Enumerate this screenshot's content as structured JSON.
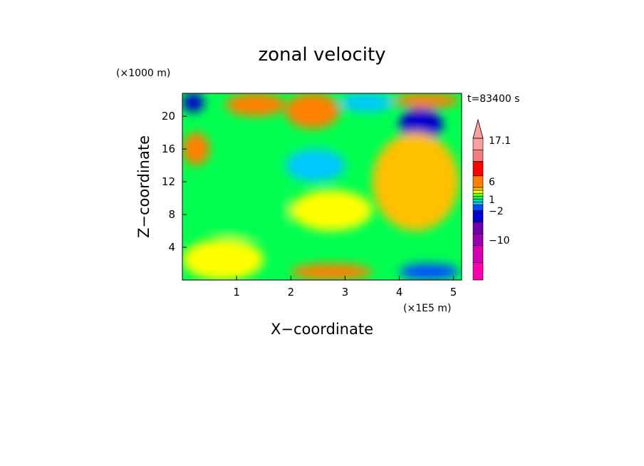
{
  "chart_data": {
    "type": "heatmap",
    "title": "zonal velocity",
    "xlabel": "X−coordinate",
    "ylabel": "Z−coordinate",
    "x_unit": "(×1E5 m)",
    "y_unit": "(×1000 m)",
    "time_label": "t=83400 s",
    "xlim": [
      0,
      5.15
    ],
    "ylim": [
      0,
      22.8
    ],
    "x_ticks": [
      1,
      2,
      3,
      4,
      5
    ],
    "y_ticks": [
      4,
      8,
      12,
      16,
      20
    ],
    "colorbar": {
      "labels": [
        {
          "value": 17.1,
          "text": "17.1"
        },
        {
          "value": 6,
          "text": "6"
        },
        {
          "value": 1,
          "text": "1"
        },
        {
          "value": -2,
          "text": "−2"
        },
        {
          "value": -10,
          "text": "−10"
        }
      ],
      "levels_colors": [
        "#ff00b0",
        "#d400b4",
        "#9a00b0",
        "#6f00b0",
        "#0000cc",
        "#0050ff",
        "#00c8ff",
        "#00e0a0",
        "#00ff50",
        "#80ff00",
        "#ffff00",
        "#ffc000",
        "#ff8000",
        "#ff0000",
        "#f08080",
        "#f8a0a0"
      ],
      "extend_max": true
    },
    "grid": false,
    "note_regions": [
      {
        "x": [
          0.0,
          0.4
        ],
        "z": [
          20.5,
          22.8
        ],
        "value": -8
      },
      {
        "x": [
          0.8,
          1.9
        ],
        "z": [
          20.0,
          22.8
        ],
        "value": 6
      },
      {
        "x": [
          1.9,
          2.9
        ],
        "z": [
          18.5,
          22.8
        ],
        "value": 10
      },
      {
        "x": [
          2.9,
          3.9
        ],
        "z": [
          20.5,
          22.8
        ],
        "value": -1
      },
      {
        "x": [
          4.0,
          4.8
        ],
        "z": [
          17.0,
          21.0
        ],
        "value": -8
      },
      {
        "x": [
          3.9,
          5.1
        ],
        "z": [
          21.0,
          22.8
        ],
        "value": 6
      },
      {
        "x": [
          0.0,
          0.5
        ],
        "z": [
          14.0,
          18.0
        ],
        "value": 6
      },
      {
        "x": [
          1.9,
          3.0
        ],
        "z": [
          12.0,
          16.0
        ],
        "value": -1
      },
      {
        "x": [
          0.3,
          2.0
        ],
        "z": [
          5.0,
          12.0
        ],
        "value": 0
      },
      {
        "x": [
          2.0,
          3.5
        ],
        "z": [
          6.0,
          11.0
        ],
        "value": 2
      },
      {
        "x": [
          3.5,
          5.1
        ],
        "z": [
          6.0,
          18.0
        ],
        "value": 3
      },
      {
        "x": [
          0.0,
          1.5
        ],
        "z": [
          0.0,
          5.0
        ],
        "value": 2
      },
      {
        "x": [
          2.0,
          3.5
        ],
        "z": [
          0.0,
          2.0
        ],
        "value": 5
      },
      {
        "x": [
          4.0,
          5.1
        ],
        "z": [
          0.0,
          2.0
        ],
        "value": -3
      }
    ]
  }
}
